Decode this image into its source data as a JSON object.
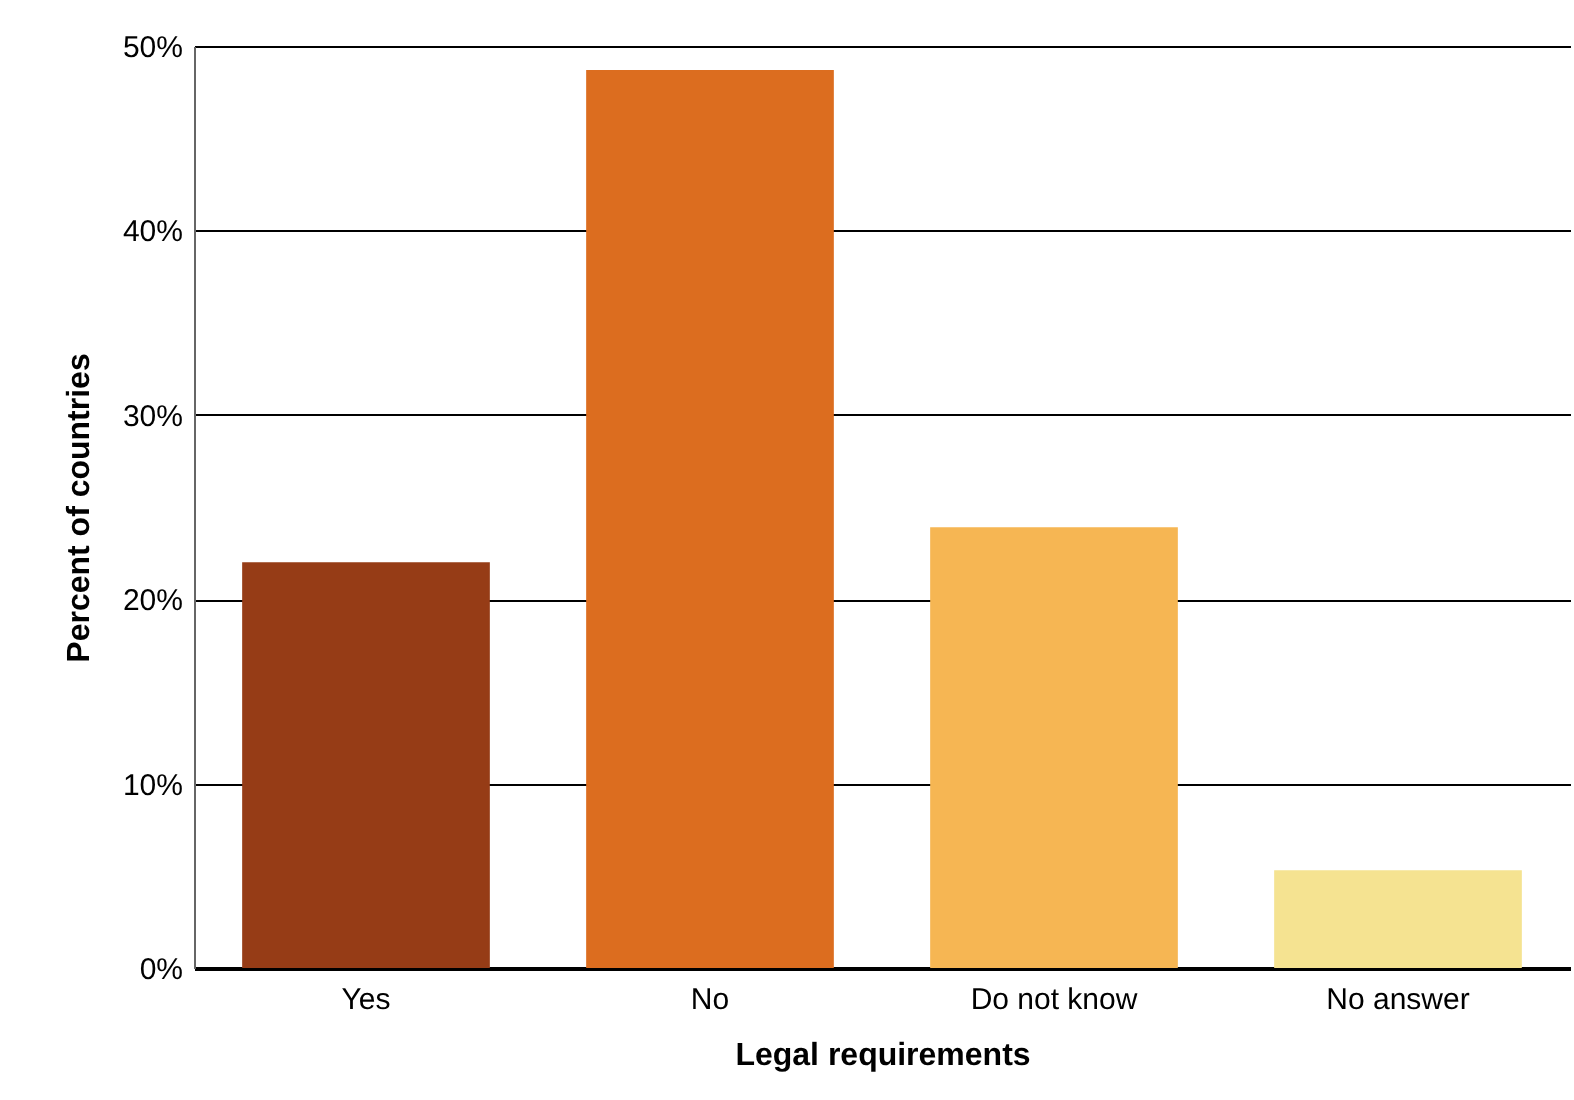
{
  "chart_data": {
    "type": "bar",
    "xlabel": "Legal requirements",
    "ylabel": "Percent of countries",
    "categories": [
      "Yes",
      "No",
      "Do not know",
      "No answer"
    ],
    "values": [
      22.0,
      48.7,
      23.9,
      5.3
    ],
    "colors": [
      "#963c16",
      "#dc6d1f",
      "#f6b653",
      "#f5e391"
    ],
    "ylim": [
      0,
      50
    ],
    "yticks": [
      {
        "value": 0,
        "label": "0%"
      },
      {
        "value": 10,
        "label": "10%"
      },
      {
        "value": 20,
        "label": "20%"
      },
      {
        "value": 30,
        "label": "30%"
      },
      {
        "value": 40,
        "label": "40%"
      },
      {
        "value": 50,
        "label": "50%"
      }
    ],
    "grid": "y"
  }
}
